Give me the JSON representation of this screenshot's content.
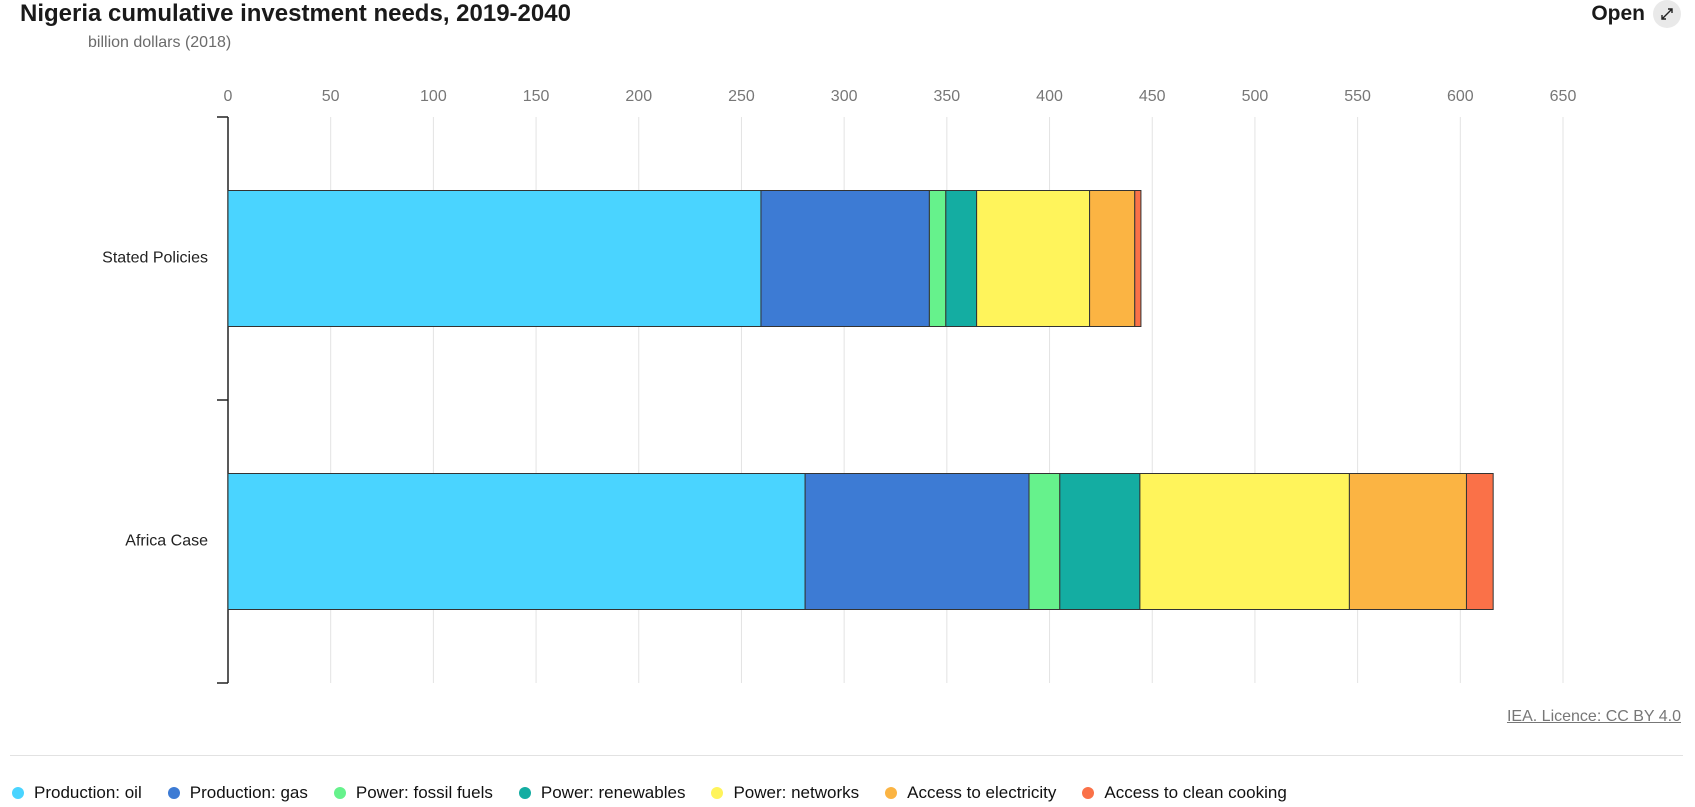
{
  "header": {
    "title": "Nigeria cumulative investment needs, 2019-2040",
    "subtitle": "billion dollars (2018)",
    "open_label": "Open"
  },
  "footer": {
    "credit": "IEA. Licence: CC BY 4.0"
  },
  "chart_data": {
    "type": "bar",
    "orientation": "horizontal",
    "stacked": true,
    "title": "Nigeria cumulative investment needs, 2019-2040",
    "ylabel": "",
    "xlabel": "billion dollars (2018)",
    "xlim": [
      0,
      650
    ],
    "xticks": [
      "0",
      "50",
      "100",
      "150",
      "200",
      "250",
      "300",
      "350",
      "400",
      "450",
      "500",
      "550",
      "600",
      "650"
    ],
    "grid": true,
    "legend_position": "bottom",
    "categories": [
      "Stated Policies",
      "Africa Case"
    ],
    "series": [
      {
        "name": "Production: oil",
        "color": "#4ad4ff",
        "values": [
          259.5,
          281
        ]
      },
      {
        "name": "Production: gas",
        "color": "#3d7bd4",
        "values": [
          82,
          109
        ]
      },
      {
        "name": "Power: fossil fuels",
        "color": "#66f28c",
        "values": [
          8,
          15
        ]
      },
      {
        "name": "Power: renewables",
        "color": "#14ada2",
        "values": [
          15,
          39
        ]
      },
      {
        "name": "Power: networks",
        "color": "#fff45b",
        "values": [
          55,
          102
        ]
      },
      {
        "name": "Access to electricity",
        "color": "#fbb443",
        "values": [
          22,
          57
        ]
      },
      {
        "name": "Access to clean cooking",
        "color": "#fa7148",
        "values": [
          3,
          13
        ]
      }
    ]
  }
}
